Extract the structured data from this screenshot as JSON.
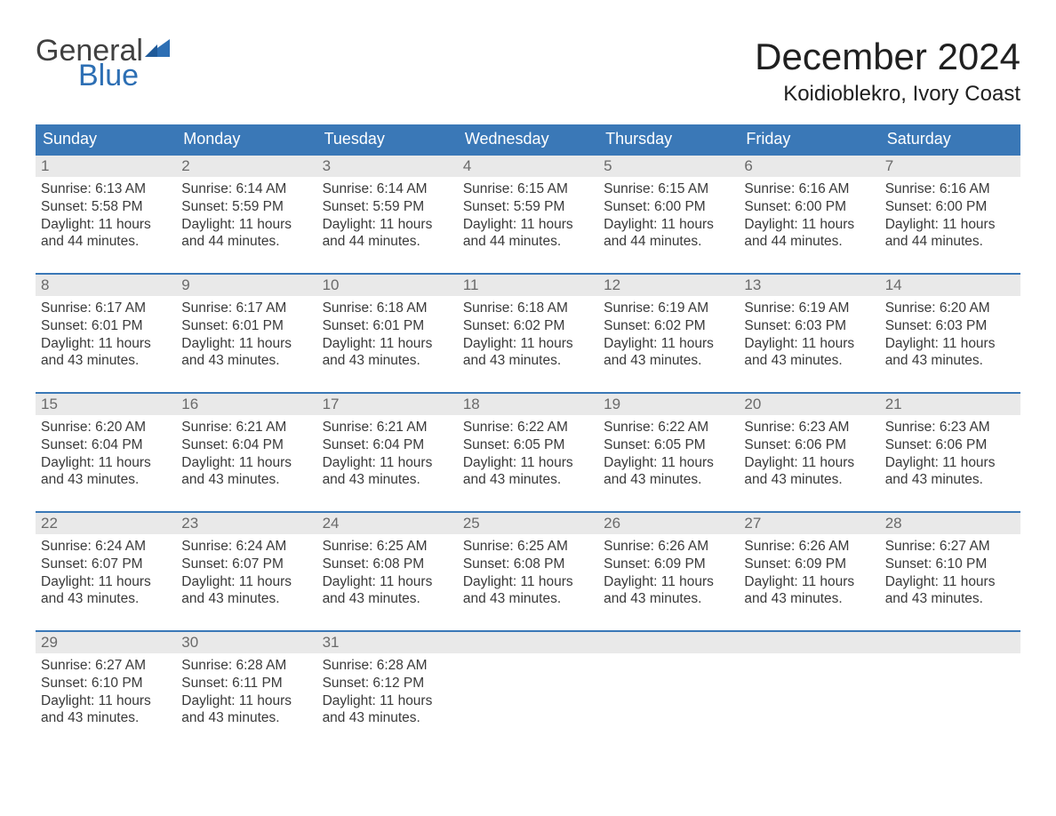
{
  "logo": {
    "general": "General",
    "blue": "Blue",
    "flag_color": "#2d6fb4",
    "general_color": "#404040"
  },
  "header": {
    "month_title": "December 2024",
    "location": "Koidioblekro, Ivory Coast"
  },
  "colors": {
    "header_bg": "#3a78b7",
    "header_text": "#ffffff",
    "daynum_bg": "#e9e9e9",
    "daynum_text": "#6a6a6a",
    "body_text": "#3a3a3a",
    "rule": "#3a78b7",
    "background": "#ffffff"
  },
  "calendar": {
    "weekday_labels": [
      "Sunday",
      "Monday",
      "Tuesday",
      "Wednesday",
      "Thursday",
      "Friday",
      "Saturday"
    ],
    "weeks": [
      [
        {
          "num": "1",
          "sunrise": "Sunrise: 6:13 AM",
          "sunset": "Sunset: 5:58 PM",
          "daylight1": "Daylight: 11 hours",
          "daylight2": "and 44 minutes."
        },
        {
          "num": "2",
          "sunrise": "Sunrise: 6:14 AM",
          "sunset": "Sunset: 5:59 PM",
          "daylight1": "Daylight: 11 hours",
          "daylight2": "and 44 minutes."
        },
        {
          "num": "3",
          "sunrise": "Sunrise: 6:14 AM",
          "sunset": "Sunset: 5:59 PM",
          "daylight1": "Daylight: 11 hours",
          "daylight2": "and 44 minutes."
        },
        {
          "num": "4",
          "sunrise": "Sunrise: 6:15 AM",
          "sunset": "Sunset: 5:59 PM",
          "daylight1": "Daylight: 11 hours",
          "daylight2": "and 44 minutes."
        },
        {
          "num": "5",
          "sunrise": "Sunrise: 6:15 AM",
          "sunset": "Sunset: 6:00 PM",
          "daylight1": "Daylight: 11 hours",
          "daylight2": "and 44 minutes."
        },
        {
          "num": "6",
          "sunrise": "Sunrise: 6:16 AM",
          "sunset": "Sunset: 6:00 PM",
          "daylight1": "Daylight: 11 hours",
          "daylight2": "and 44 minutes."
        },
        {
          "num": "7",
          "sunrise": "Sunrise: 6:16 AM",
          "sunset": "Sunset: 6:00 PM",
          "daylight1": "Daylight: 11 hours",
          "daylight2": "and 44 minutes."
        }
      ],
      [
        {
          "num": "8",
          "sunrise": "Sunrise: 6:17 AM",
          "sunset": "Sunset: 6:01 PM",
          "daylight1": "Daylight: 11 hours",
          "daylight2": "and 43 minutes."
        },
        {
          "num": "9",
          "sunrise": "Sunrise: 6:17 AM",
          "sunset": "Sunset: 6:01 PM",
          "daylight1": "Daylight: 11 hours",
          "daylight2": "and 43 minutes."
        },
        {
          "num": "10",
          "sunrise": "Sunrise: 6:18 AM",
          "sunset": "Sunset: 6:01 PM",
          "daylight1": "Daylight: 11 hours",
          "daylight2": "and 43 minutes."
        },
        {
          "num": "11",
          "sunrise": "Sunrise: 6:18 AM",
          "sunset": "Sunset: 6:02 PM",
          "daylight1": "Daylight: 11 hours",
          "daylight2": "and 43 minutes."
        },
        {
          "num": "12",
          "sunrise": "Sunrise: 6:19 AM",
          "sunset": "Sunset: 6:02 PM",
          "daylight1": "Daylight: 11 hours",
          "daylight2": "and 43 minutes."
        },
        {
          "num": "13",
          "sunrise": "Sunrise: 6:19 AM",
          "sunset": "Sunset: 6:03 PM",
          "daylight1": "Daylight: 11 hours",
          "daylight2": "and 43 minutes."
        },
        {
          "num": "14",
          "sunrise": "Sunrise: 6:20 AM",
          "sunset": "Sunset: 6:03 PM",
          "daylight1": "Daylight: 11 hours",
          "daylight2": "and 43 minutes."
        }
      ],
      [
        {
          "num": "15",
          "sunrise": "Sunrise: 6:20 AM",
          "sunset": "Sunset: 6:04 PM",
          "daylight1": "Daylight: 11 hours",
          "daylight2": "and 43 minutes."
        },
        {
          "num": "16",
          "sunrise": "Sunrise: 6:21 AM",
          "sunset": "Sunset: 6:04 PM",
          "daylight1": "Daylight: 11 hours",
          "daylight2": "and 43 minutes."
        },
        {
          "num": "17",
          "sunrise": "Sunrise: 6:21 AM",
          "sunset": "Sunset: 6:04 PM",
          "daylight1": "Daylight: 11 hours",
          "daylight2": "and 43 minutes."
        },
        {
          "num": "18",
          "sunrise": "Sunrise: 6:22 AM",
          "sunset": "Sunset: 6:05 PM",
          "daylight1": "Daylight: 11 hours",
          "daylight2": "and 43 minutes."
        },
        {
          "num": "19",
          "sunrise": "Sunrise: 6:22 AM",
          "sunset": "Sunset: 6:05 PM",
          "daylight1": "Daylight: 11 hours",
          "daylight2": "and 43 minutes."
        },
        {
          "num": "20",
          "sunrise": "Sunrise: 6:23 AM",
          "sunset": "Sunset: 6:06 PM",
          "daylight1": "Daylight: 11 hours",
          "daylight2": "and 43 minutes."
        },
        {
          "num": "21",
          "sunrise": "Sunrise: 6:23 AM",
          "sunset": "Sunset: 6:06 PM",
          "daylight1": "Daylight: 11 hours",
          "daylight2": "and 43 minutes."
        }
      ],
      [
        {
          "num": "22",
          "sunrise": "Sunrise: 6:24 AM",
          "sunset": "Sunset: 6:07 PM",
          "daylight1": "Daylight: 11 hours",
          "daylight2": "and 43 minutes."
        },
        {
          "num": "23",
          "sunrise": "Sunrise: 6:24 AM",
          "sunset": "Sunset: 6:07 PM",
          "daylight1": "Daylight: 11 hours",
          "daylight2": "and 43 minutes."
        },
        {
          "num": "24",
          "sunrise": "Sunrise: 6:25 AM",
          "sunset": "Sunset: 6:08 PM",
          "daylight1": "Daylight: 11 hours",
          "daylight2": "and 43 minutes."
        },
        {
          "num": "25",
          "sunrise": "Sunrise: 6:25 AM",
          "sunset": "Sunset: 6:08 PM",
          "daylight1": "Daylight: 11 hours",
          "daylight2": "and 43 minutes."
        },
        {
          "num": "26",
          "sunrise": "Sunrise: 6:26 AM",
          "sunset": "Sunset: 6:09 PM",
          "daylight1": "Daylight: 11 hours",
          "daylight2": "and 43 minutes."
        },
        {
          "num": "27",
          "sunrise": "Sunrise: 6:26 AM",
          "sunset": "Sunset: 6:09 PM",
          "daylight1": "Daylight: 11 hours",
          "daylight2": "and 43 minutes."
        },
        {
          "num": "28",
          "sunrise": "Sunrise: 6:27 AM",
          "sunset": "Sunset: 6:10 PM",
          "daylight1": "Daylight: 11 hours",
          "daylight2": "and 43 minutes."
        }
      ],
      [
        {
          "num": "29",
          "sunrise": "Sunrise: 6:27 AM",
          "sunset": "Sunset: 6:10 PM",
          "daylight1": "Daylight: 11 hours",
          "daylight2": "and 43 minutes."
        },
        {
          "num": "30",
          "sunrise": "Sunrise: 6:28 AM",
          "sunset": "Sunset: 6:11 PM",
          "daylight1": "Daylight: 11 hours",
          "daylight2": "and 43 minutes."
        },
        {
          "num": "31",
          "sunrise": "Sunrise: 6:28 AM",
          "sunset": "Sunset: 6:12 PM",
          "daylight1": "Daylight: 11 hours",
          "daylight2": "and 43 minutes."
        },
        {
          "empty": true
        },
        {
          "empty": true
        },
        {
          "empty": true
        },
        {
          "empty": true
        }
      ]
    ]
  }
}
